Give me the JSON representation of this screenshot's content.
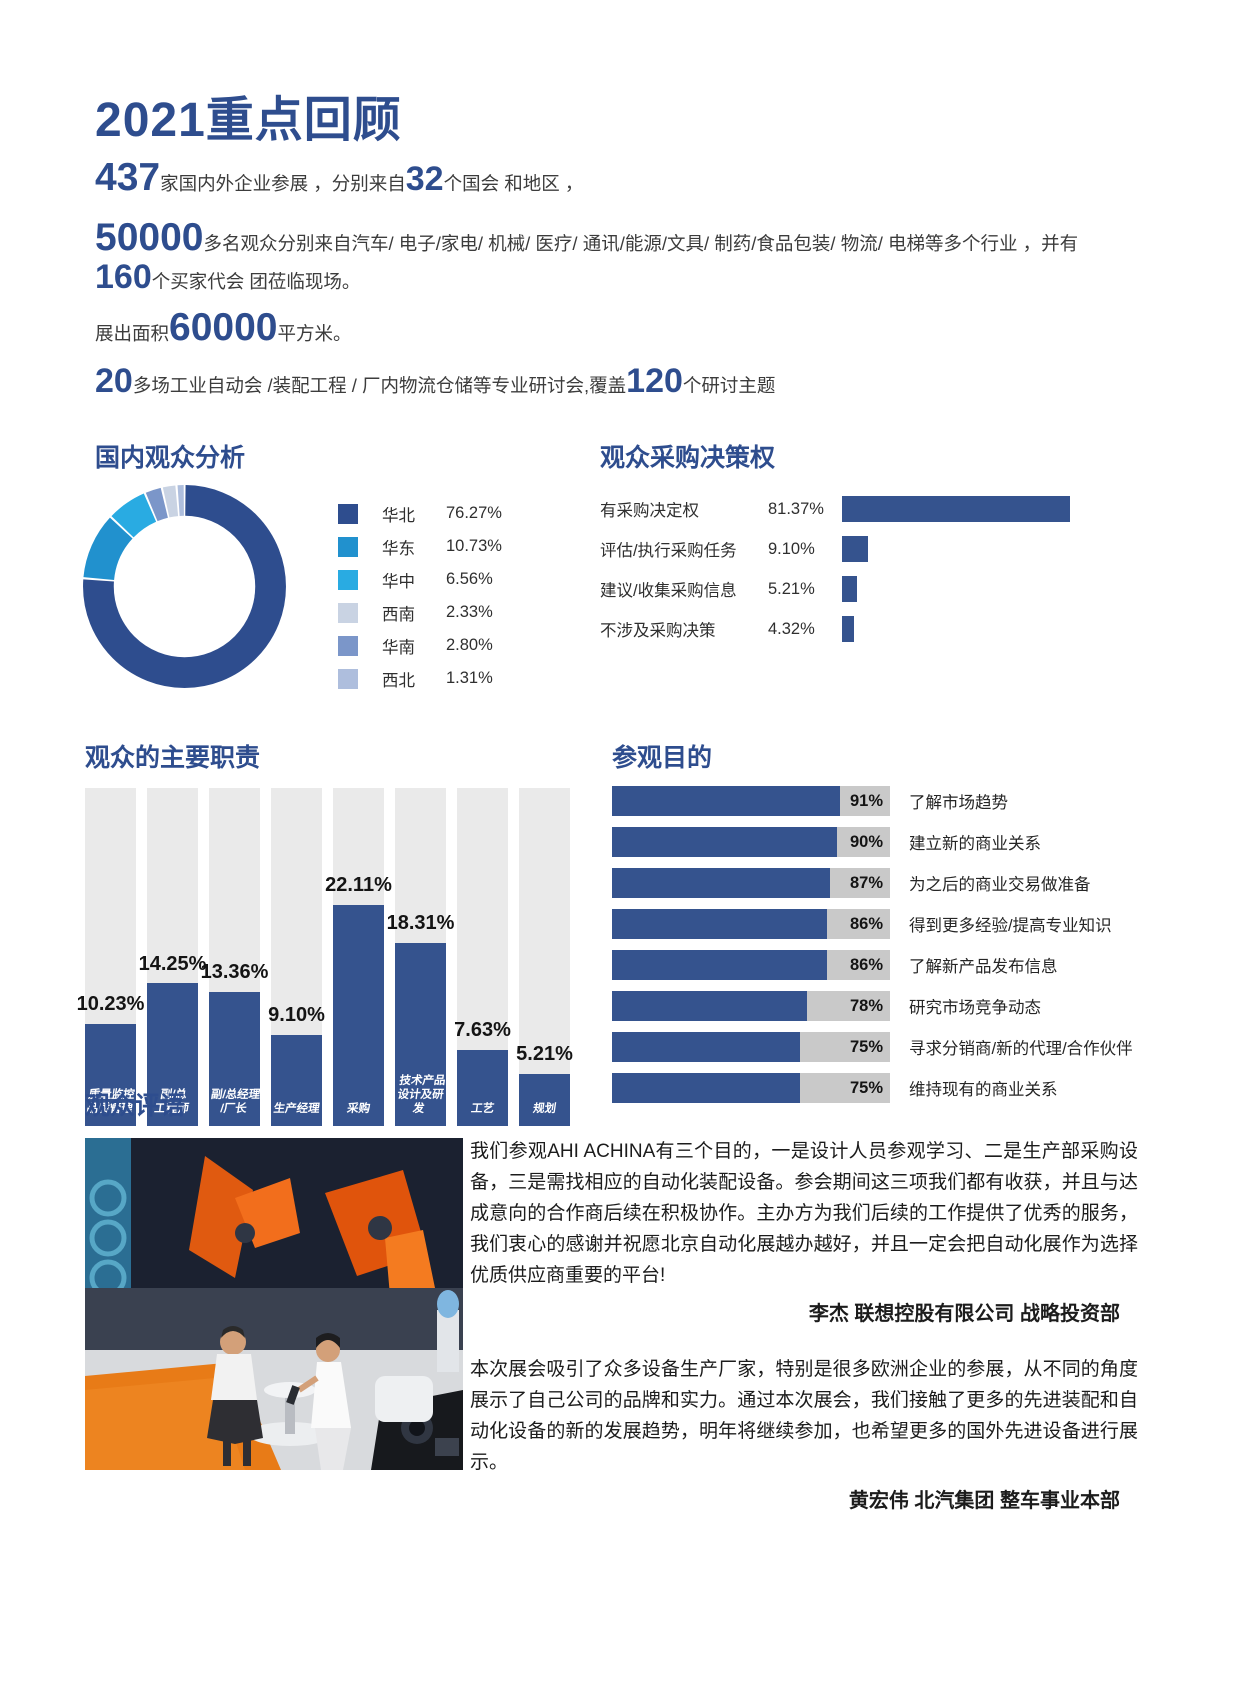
{
  "page": {
    "title": "2021重点回顾"
  },
  "stats": {
    "n_exhibitors": "437",
    "t1": "家国内外企业参展 ，分别来自",
    "n_countries": "32",
    "t2": "个国会 和地区 ，",
    "n_visitors": "50000",
    "t3": "多名观众分别来自汽车/ 电子/家电/ 机械/ 医疗/ 通讯/能源/文具/ 制药/食品包装/ 物流/ 电梯等多个行业 ，并有",
    "n_delegations": "160",
    "t4": "个买家代会 团莅临现场。",
    "t5a": "展出面积",
    "n_area": "60000",
    "t5b": "平方米。",
    "n_seminars": "20",
    "t6": "多场工业自动会 /装配工程 / 厂内物流仓储等专业研讨会,覆盖",
    "n_topics": "120",
    "t7": "个研讨主题"
  },
  "chart_data": [
    {
      "type": "pie",
      "donut": true,
      "title": "国内观众分析",
      "labels": [
        "华北",
        "华东",
        "华中",
        "西南",
        "华南",
        "西北"
      ],
      "values": [
        76.27,
        10.73,
        6.56,
        2.33,
        2.8,
        1.31
      ],
      "display": [
        "76.27%",
        "10.73%",
        "6.56%",
        "2.33%",
        "2.80%",
        "1.31%"
      ],
      "colors": [
        "#2e4d8e",
        "#2191ce",
        "#29abe2",
        "#c9d3e3",
        "#7b96c9",
        "#aebedd"
      ],
      "draw_order": [
        0,
        1,
        2,
        4,
        3,
        5
      ],
      "legend_position": "right"
    },
    {
      "type": "bar",
      "orientation": "horizontal",
      "title": "观众采购决策权",
      "categories": [
        "有采购决定权",
        "评估/执行采购任务",
        "建议/收集采购信息",
        "不涉及采购决策"
      ],
      "values": [
        81.37,
        9.1,
        5.21,
        4.32
      ],
      "display": [
        "81.37%",
        "9.10%",
        "5.21%",
        "4.32%"
      ],
      "bar_color": "#35538e",
      "xlim": [
        0,
        100
      ],
      "grid": false
    },
    {
      "type": "bar",
      "orientation": "vertical",
      "title": "观众的主要职责",
      "categories": [
        "质量监控\n品质管理",
        "副/总\n工程师",
        "副/总经理\n/厂长",
        "生产经理",
        "采购",
        "技术产品\n设计及研发",
        "工艺",
        "规划"
      ],
      "values": [
        10.23,
        14.25,
        13.36,
        9.1,
        22.11,
        18.31,
        7.63,
        5.21
      ],
      "display": [
        "10.23%",
        "14.25%",
        "13.36%",
        "9.10%",
        "22.11%",
        "18.31%",
        "7.63%",
        "5.21%"
      ],
      "bar_color": "#35538e",
      "track_color": "#eaeaea",
      "grid": false
    },
    {
      "type": "bar",
      "orientation": "horizontal",
      "title": "参观目的",
      "categories": [
        "了解市场趋势",
        "建立新的商业关系",
        "为之后的商业交易做准备",
        "得到更多经验/提高专业知识",
        "了解新产品发布信息",
        "研究市场竞争动态",
        "寻求分销商/新的代理/合作伙伴",
        "维持现有的商业关系"
      ],
      "values": [
        91,
        90,
        87,
        86,
        86,
        78,
        75,
        75
      ],
      "display": [
        "91%",
        "90%",
        "87%",
        "86%",
        "86%",
        "78%",
        "75%",
        "75%"
      ],
      "bar_color": "#35538e",
      "track_color": "#c9c9c9",
      "xlim": [
        0,
        100
      ],
      "grid": false
    }
  ],
  "comments": {
    "title": "观众评语",
    "items": [
      {
        "text": "我们参观AHI ACHINA有三个目的，一是设计人员参观学习、二是生产部采购设备，三是需找相应的自动化装配设备。参会期间这三项我们都有收获，并且与达成意向的合作商后续在积极协作。主办方为我们后续的工作提供了优秀的服务，我们衷心的感谢并祝愿北京自动化展越办越好，并且一定会把自动化展作为选择优质供应商重要的平台!",
        "author": "李杰 联想控股有限公司 战略投资部"
      },
      {
        "text": "本次展会吸引了众多设备生产厂家，特别是很多欧洲企业的参展，从不同的角度展示了自己公司的品牌和实力。通过本次展会，我们接触了更多的先进装配和自动化设备的新的发展趋势，明年将继续参加，也希望更多的国外先进设备进行展示。",
        "author": "黄宏伟 北汽集团 整车事业本部"
      }
    ]
  }
}
